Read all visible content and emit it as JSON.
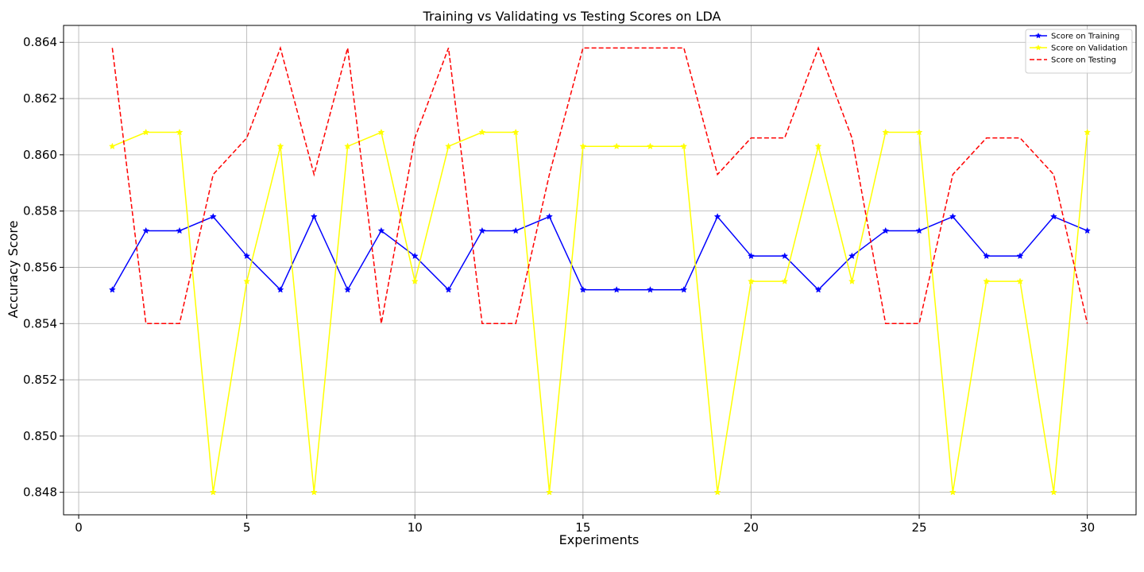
{
  "chart_data": {
    "type": "line",
    "title": "Training vs Validating vs Testing Scores on LDA",
    "xlabel": "Experiments",
    "ylabel": "Accuracy Score",
    "xlim": [
      -0.45,
      31.45
    ],
    "ylim": [
      0.8472,
      0.8646
    ],
    "xticks": [
      0,
      5,
      10,
      15,
      20,
      25,
      30
    ],
    "yticks": [
      0.848,
      0.85,
      0.852,
      0.854,
      0.856,
      0.858,
      0.86,
      0.862,
      0.864
    ],
    "ytick_labels": [
      "0.848",
      "0.850",
      "0.852",
      "0.854",
      "0.856",
      "0.858",
      "0.860",
      "0.862",
      "0.864"
    ],
    "grid": true,
    "legend_position": "top-right",
    "x": [
      1,
      2,
      3,
      4,
      5,
      6,
      7,
      8,
      9,
      10,
      11,
      12,
      13,
      14,
      15,
      16,
      17,
      18,
      19,
      20,
      21,
      22,
      23,
      24,
      25,
      26,
      27,
      28,
      29,
      30
    ],
    "series": [
      {
        "name": "Score on Training",
        "color": "#0000ff",
        "style": "solid",
        "marker": "star",
        "values": [
          0.8552,
          0.8573,
          0.8573,
          0.8578,
          0.8564,
          0.8552,
          0.8578,
          0.8552,
          0.8573,
          0.8564,
          0.8552,
          0.8573,
          0.8573,
          0.8578,
          0.8552,
          0.8552,
          0.8552,
          0.8552,
          0.8578,
          0.8564,
          0.8564,
          0.8552,
          0.8564,
          0.8573,
          0.8573,
          0.8578,
          0.8564,
          0.8564,
          0.8578,
          0.8573
        ]
      },
      {
        "name": "Score on Validation",
        "color": "#ffff00",
        "style": "solid",
        "marker": "star",
        "values": [
          0.8603,
          0.8608,
          0.8608,
          0.848,
          0.8555,
          0.8603,
          0.848,
          0.8603,
          0.8608,
          0.8555,
          0.8603,
          0.8608,
          0.8608,
          0.848,
          0.8603,
          0.8603,
          0.8603,
          0.8603,
          0.848,
          0.8555,
          0.8555,
          0.8603,
          0.8555,
          0.8608,
          0.8608,
          0.848,
          0.8555,
          0.8555,
          0.848,
          0.8608
        ]
      },
      {
        "name": "Score on Testing",
        "color": "#ff0000",
        "style": "dashed",
        "marker": "none",
        "values": [
          0.8638,
          0.854,
          0.854,
          0.8593,
          0.8606,
          0.8638,
          0.8593,
          0.8638,
          0.854,
          0.8606,
          0.8638,
          0.854,
          0.854,
          0.8593,
          0.8638,
          0.8638,
          0.8638,
          0.8638,
          0.8593,
          0.8606,
          0.8606,
          0.8638,
          0.8606,
          0.854,
          0.854,
          0.8593,
          0.8606,
          0.8606,
          0.8593,
          0.854
        ]
      }
    ]
  }
}
